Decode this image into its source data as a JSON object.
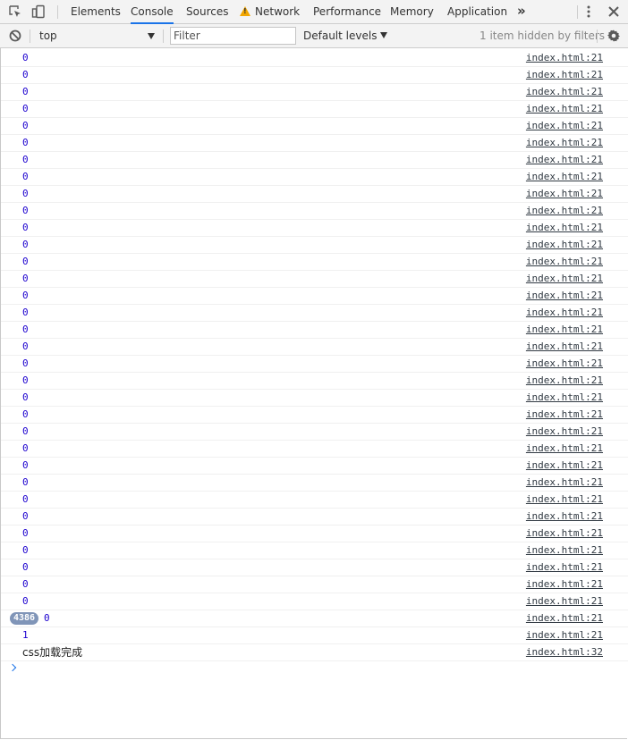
{
  "tabs": [
    {
      "label": "Elements",
      "active": false
    },
    {
      "label": "Console",
      "active": true
    },
    {
      "label": "Sources",
      "active": false
    },
    {
      "label": "Network",
      "active": false,
      "warning": true
    },
    {
      "label": "Performance",
      "active": false
    },
    {
      "label": "Memory",
      "active": false
    },
    {
      "label": "Application",
      "active": false
    }
  ],
  "more_tabs_label": "»",
  "toolbar": {
    "context": "top",
    "filter_placeholder": "Filter",
    "filter_value": "",
    "levels_label": "Default levels",
    "hidden_info": "1 item hidden by filters"
  },
  "icons": {
    "inspect": "inspect-element-icon",
    "device": "device-toolbar-icon",
    "menu": "kebab-menu-icon",
    "close": "close-icon",
    "clear": "clear-console-icon",
    "settings": "gear-icon"
  },
  "colors": {
    "value": "#1c00cf",
    "badge": "#8095b8",
    "accent": "#1a73e8",
    "warning": "#f2a600"
  },
  "console": {
    "rows": [
      {
        "value": "0",
        "source": "index.html:21"
      },
      {
        "value": "0",
        "source": "index.html:21"
      },
      {
        "value": "0",
        "source": "index.html:21"
      },
      {
        "value": "0",
        "source": "index.html:21"
      },
      {
        "value": "0",
        "source": "index.html:21"
      },
      {
        "value": "0",
        "source": "index.html:21"
      },
      {
        "value": "0",
        "source": "index.html:21"
      },
      {
        "value": "0",
        "source": "index.html:21"
      },
      {
        "value": "0",
        "source": "index.html:21"
      },
      {
        "value": "0",
        "source": "index.html:21"
      },
      {
        "value": "0",
        "source": "index.html:21"
      },
      {
        "value": "0",
        "source": "index.html:21"
      },
      {
        "value": "0",
        "source": "index.html:21"
      },
      {
        "value": "0",
        "source": "index.html:21"
      },
      {
        "value": "0",
        "source": "index.html:21"
      },
      {
        "value": "0",
        "source": "index.html:21"
      },
      {
        "value": "0",
        "source": "index.html:21"
      },
      {
        "value": "0",
        "source": "index.html:21"
      },
      {
        "value": "0",
        "source": "index.html:21"
      },
      {
        "value": "0",
        "source": "index.html:21"
      },
      {
        "value": "0",
        "source": "index.html:21"
      },
      {
        "value": "0",
        "source": "index.html:21"
      },
      {
        "value": "0",
        "source": "index.html:21"
      },
      {
        "value": "0",
        "source": "index.html:21"
      },
      {
        "value": "0",
        "source": "index.html:21"
      },
      {
        "value": "0",
        "source": "index.html:21"
      },
      {
        "value": "0",
        "source": "index.html:21"
      },
      {
        "value": "0",
        "source": "index.html:21"
      },
      {
        "value": "0",
        "source": "index.html:21"
      },
      {
        "value": "0",
        "source": "index.html:21"
      },
      {
        "value": "0",
        "source": "index.html:21"
      },
      {
        "value": "0",
        "source": "index.html:21"
      },
      {
        "value": "0",
        "source": "index.html:21"
      },
      {
        "value": "0",
        "source": "index.html:21",
        "repeat_count": "4386"
      },
      {
        "value": "1",
        "source": "index.html:21"
      },
      {
        "text": "css加载完成",
        "source": "index.html:32"
      }
    ]
  }
}
